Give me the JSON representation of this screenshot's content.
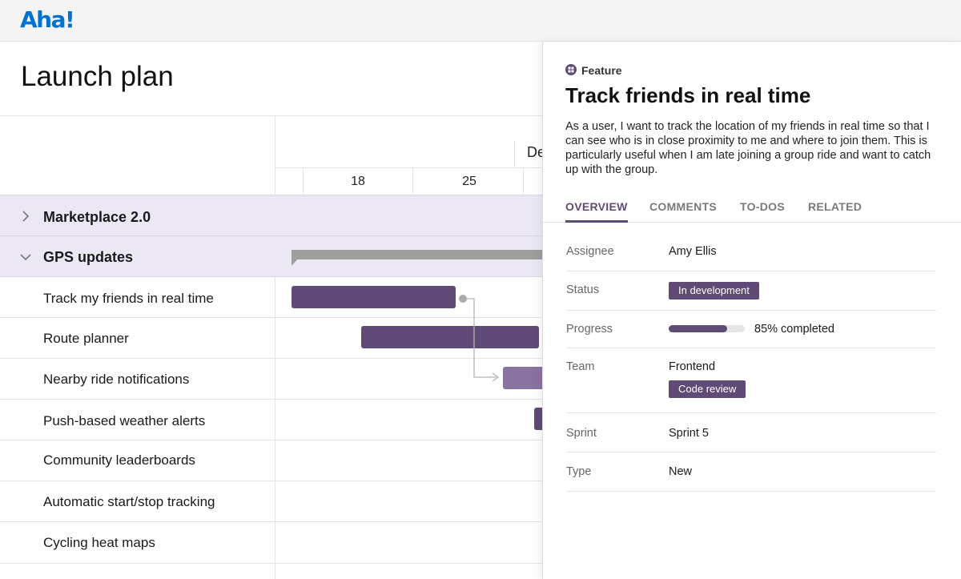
{
  "app": {
    "logo": "Aha!"
  },
  "page": {
    "title": "Launch plan"
  },
  "timeline": {
    "month": "De",
    "weeks": [
      "18",
      "25"
    ]
  },
  "groups": [
    {
      "label": "Marketplace 2.0",
      "expanded": false
    },
    {
      "label": "GPS updates",
      "expanded": true
    }
  ],
  "features": [
    {
      "label": "Track my friends in real time"
    },
    {
      "label": "Route planner"
    },
    {
      "label": "Nearby ride notifications"
    },
    {
      "label": "Push-based weather alerts"
    },
    {
      "label": "Community leaderboards"
    },
    {
      "label": "Automatic start/stop tracking"
    },
    {
      "label": "Cycling heat maps"
    }
  ],
  "detail": {
    "type": "Feature",
    "title": "Track friends in real time",
    "description": "As a user, I want to track the location of my friends in real time so that I can see who is in close proximity to me and where to join them. This is particularly useful when I am late joining a group ride and want to catch up with the group.",
    "tabs": [
      "OVERVIEW",
      "COMMENTS",
      "TO-DOS",
      "RELATED"
    ],
    "active_tab": "OVERVIEW",
    "fields": {
      "assignee": {
        "label": "Assignee",
        "value": "Amy Ellis"
      },
      "status": {
        "label": "Status",
        "value": "In development"
      },
      "progress": {
        "label": "Progress",
        "value": "85% completed",
        "percent": 85
      },
      "team": {
        "label": "Team",
        "value": "Frontend",
        "tag": "Code review"
      },
      "sprint": {
        "label": "Sprint",
        "value": "Sprint 5"
      },
      "type": {
        "label": "Type",
        "value": "New"
      }
    }
  },
  "colors": {
    "brand": "#0073cf",
    "accent": "#5f4b75",
    "group_row": "#ebe8f4",
    "bar_light": "#8a739f",
    "summary_bar": "#9e9e9e"
  }
}
